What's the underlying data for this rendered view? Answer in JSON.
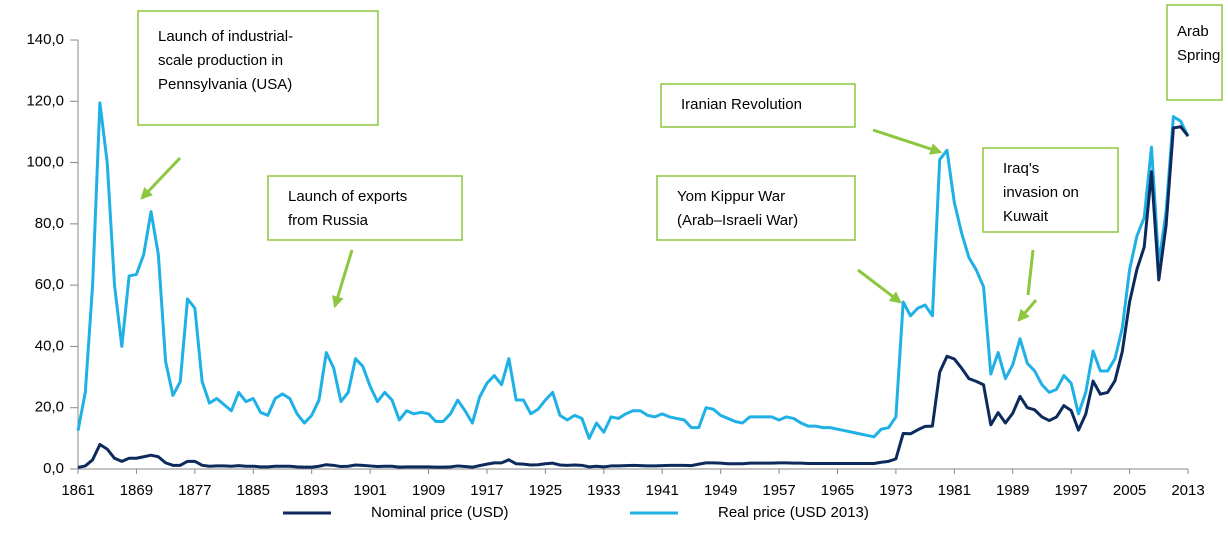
{
  "chart_data": {
    "type": "line",
    "x": [
      1861,
      1862,
      1863,
      1864,
      1865,
      1866,
      1867,
      1868,
      1869,
      1870,
      1871,
      1872,
      1873,
      1874,
      1875,
      1876,
      1877,
      1878,
      1879,
      1880,
      1881,
      1882,
      1883,
      1884,
      1885,
      1886,
      1887,
      1888,
      1889,
      1890,
      1891,
      1892,
      1893,
      1894,
      1895,
      1896,
      1897,
      1898,
      1899,
      1900,
      1901,
      1902,
      1903,
      1904,
      1905,
      1906,
      1907,
      1908,
      1909,
      1910,
      1911,
      1912,
      1913,
      1914,
      1915,
      1916,
      1917,
      1918,
      1919,
      1920,
      1921,
      1922,
      1923,
      1924,
      1925,
      1926,
      1927,
      1928,
      1929,
      1930,
      1931,
      1932,
      1933,
      1934,
      1935,
      1936,
      1937,
      1938,
      1939,
      1940,
      1941,
      1942,
      1943,
      1944,
      1945,
      1946,
      1947,
      1948,
      1949,
      1950,
      1951,
      1952,
      1953,
      1954,
      1955,
      1956,
      1957,
      1958,
      1959,
      1960,
      1961,
      1962,
      1963,
      1964,
      1965,
      1966,
      1967,
      1968,
      1969,
      1970,
      1971,
      1972,
      1973,
      1974,
      1975,
      1976,
      1977,
      1978,
      1979,
      1980,
      1981,
      1982,
      1983,
      1984,
      1985,
      1986,
      1987,
      1988,
      1989,
      1990,
      1991,
      1992,
      1993,
      1994,
      1995,
      1996,
      1997,
      1998,
      1999,
      2000,
      2001,
      2002,
      2003,
      2004,
      2005,
      2006,
      2007,
      2008,
      2009,
      2010,
      2011,
      2012,
      2013
    ],
    "series": [
      {
        "name": "Nominal price (USD)",
        "color": "#0d2a5c",
        "values": [
          0.5,
          1,
          3,
          8,
          6.5,
          3.5,
          2.5,
          3.5,
          3.5,
          4,
          4.5,
          4,
          2,
          1.2,
          1.2,
          2.5,
          2.5,
          1.2,
          0.9,
          1,
          1,
          0.9,
          1.1,
          0.9,
          0.9,
          0.7,
          0.7,
          0.9,
          0.9,
          0.9,
          0.7,
          0.6,
          0.6,
          0.9,
          1.4,
          1.2,
          0.8,
          0.9,
          1.3,
          1.2,
          1,
          0.8,
          0.9,
          0.9,
          0.6,
          0.7,
          0.7,
          0.7,
          0.7,
          0.6,
          0.6,
          0.7,
          1,
          0.8,
          0.6,
          1.1,
          1.6,
          2,
          2,
          3,
          1.7,
          1.6,
          1.3,
          1.4,
          1.7,
          1.9,
          1.3,
          1.2,
          1.3,
          1.2,
          0.7,
          0.9,
          0.7,
          1,
          1,
          1.1,
          1.2,
          1.1,
          1,
          1,
          1.1,
          1.2,
          1.2,
          1.2,
          1.1,
          1.6,
          2,
          2,
          1.9,
          1.7,
          1.7,
          1.7,
          1.9,
          1.9,
          1.9,
          1.9,
          2,
          2,
          1.9,
          1.9,
          1.8,
          1.8,
          1.8,
          1.8,
          1.8,
          1.8,
          1.8,
          1.8,
          1.8,
          1.8,
          2.2,
          2.5,
          3.3,
          11.6,
          11.5,
          12.8,
          13.9,
          14,
          31.6,
          36.8,
          35.9,
          32.9,
          29.5,
          28.6,
          27.5,
          14.4,
          18.4,
          15,
          18.2,
          23.7,
          20,
          19.3,
          17,
          15.8,
          17,
          20.7,
          19.1,
          12.7,
          17.9,
          28.7,
          24.4,
          25,
          28.8,
          38.3,
          54.5,
          65.1,
          72.4,
          97,
          61.7,
          79.5,
          111.3,
          111.7,
          108.7
        ]
      },
      {
        "name": "Real price (USD 2013)",
        "color": "#1fb0e6",
        "values": [
          12.5,
          25,
          60,
          119.5,
          100,
          60,
          40,
          63,
          63.5,
          70,
          84,
          70,
          35,
          24,
          28.5,
          55.5,
          52.5,
          28.5,
          21.5,
          23,
          21,
          19,
          25,
          22,
          23,
          18.5,
          17.5,
          23,
          24.5,
          23,
          18,
          15,
          17.5,
          22.5,
          38,
          33,
          22,
          25,
          36,
          33.5,
          27,
          22,
          25,
          22.5,
          16,
          19,
          18,
          18.5,
          18,
          15.5,
          15.5,
          18,
          22.5,
          19,
          15,
          23.5,
          28,
          30.5,
          27.5,
          36,
          22.5,
          22.5,
          18,
          19.5,
          22.5,
          25,
          17.5,
          16,
          17.5,
          16.5,
          10,
          15,
          12,
          17,
          16.5,
          18,
          19,
          19,
          17.5,
          17,
          18,
          17,
          16.5,
          16,
          13.5,
          13.5,
          20,
          19.5,
          17.5,
          16.5,
          15.5,
          15,
          17,
          17,
          17,
          17,
          16,
          17,
          16.5,
          15,
          14,
          14,
          13.5,
          13.5,
          13,
          12.5,
          12,
          11.5,
          11,
          10.5,
          13,
          13.5,
          17,
          54.5,
          50,
          52.5,
          53.5,
          50,
          101,
          104,
          87,
          77,
          69,
          65,
          59.5,
          31,
          38,
          29.5,
          34,
          42.5,
          34.5,
          32,
          27.5,
          25,
          26,
          30.5,
          28,
          18,
          25,
          38.5,
          32,
          32,
          36,
          46,
          65,
          76,
          82,
          105,
          67,
          84,
          115,
          113.5,
          108.5
        ]
      }
    ],
    "xlim": [
      1861,
      2013
    ],
    "xticks": [
      1861,
      1869,
      1877,
      1885,
      1893,
      1901,
      1909,
      1917,
      1925,
      1933,
      1941,
      1949,
      1957,
      1965,
      1973,
      1981,
      1989,
      1997,
      2005,
      2013
    ],
    "ylim": [
      0,
      140
    ],
    "yticks": [
      {
        "value": 0,
        "label": "0,0"
      },
      {
        "value": 20,
        "label": "20,0"
      },
      {
        "value": 40,
        "label": "40,0"
      },
      {
        "value": 60,
        "label": "60,0"
      },
      {
        "value": 80,
        "label": "80,0"
      },
      {
        "value": 100,
        "label": "100,0"
      },
      {
        "value": 120,
        "label": "120,0"
      },
      {
        "value": 140,
        "label": "140,0"
      }
    ],
    "annotations": [
      [
        "Launch of industrial-",
        "scale production in",
        "Pennsylvania (USA)"
      ],
      [
        "Launch of exports",
        "from Russia"
      ],
      [
        "Iranian Revolution"
      ],
      [
        "Yom Kippur War",
        "(Arab–Israeli War)"
      ],
      [
        "Iraq's",
        "invasion on",
        "Kuwait"
      ],
      [
        "Arab",
        "Spring"
      ]
    ]
  }
}
